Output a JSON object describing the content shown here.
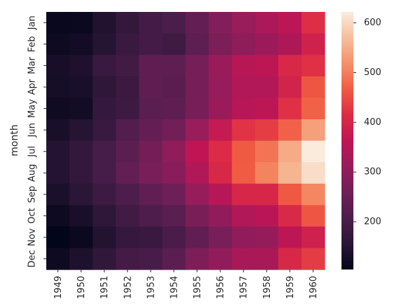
{
  "chart_data": {
    "type": "heatmap",
    "title": "",
    "xlabel": "",
    "ylabel": "month",
    "x_categories": [
      "1949",
      "1950",
      "1951",
      "1952",
      "1953",
      "1954",
      "1955",
      "1956",
      "1957",
      "1958",
      "1959",
      "1960"
    ],
    "y_categories": [
      "Jan",
      "Feb",
      "Mar",
      "Apr",
      "May",
      "Jun",
      "Jul",
      "Aug",
      "Sep",
      "Oct",
      "Nov",
      "Dec"
    ],
    "values": [
      [
        112,
        115,
        145,
        171,
        196,
        204,
        242,
        284,
        315,
        340,
        360,
        417
      ],
      [
        118,
        126,
        150,
        180,
        196,
        188,
        233,
        277,
        301,
        318,
        342,
        391
      ],
      [
        132,
        141,
        178,
        193,
        236,
        235,
        267,
        317,
        356,
        362,
        406,
        419
      ],
      [
        129,
        135,
        163,
        181,
        235,
        227,
        269,
        313,
        348,
        348,
        396,
        461
      ],
      [
        121,
        125,
        172,
        183,
        229,
        234,
        270,
        318,
        355,
        363,
        420,
        472
      ],
      [
        135,
        149,
        178,
        218,
        243,
        264,
        315,
        374,
        422,
        435,
        472,
        535
      ],
      [
        148,
        170,
        199,
        230,
        264,
        302,
        364,
        413,
        465,
        491,
        548,
        622
      ],
      [
        148,
        170,
        199,
        242,
        272,
        293,
        347,
        405,
        467,
        505,
        559,
        606
      ],
      [
        136,
        158,
        184,
        209,
        237,
        259,
        312,
        355,
        404,
        404,
        463,
        508
      ],
      [
        119,
        133,
        162,
        191,
        211,
        229,
        274,
        306,
        347,
        359,
        407,
        461
      ],
      [
        104,
        114,
        146,
        172,
        180,
        203,
        237,
        271,
        305,
        310,
        362,
        390
      ],
      [
        118,
        140,
        166,
        194,
        201,
        229,
        278,
        306,
        336,
        337,
        405,
        432
      ]
    ],
    "color_range": [
      104,
      622
    ],
    "colorbar_ticks": [
      "200",
      "300",
      "400",
      "500",
      "600"
    ],
    "colormap": "rocket",
    "colormap_stops": [
      "#03051a",
      "#2a1636",
      "#4c1d4b",
      "#6f1f57",
      "#961c5b",
      "#bd1655",
      "#dd2c45",
      "#f05b43",
      "#f5916a",
      "#f6bf9c",
      "#faebdd"
    ],
    "grid": false,
    "colorbar_position": "right"
  }
}
